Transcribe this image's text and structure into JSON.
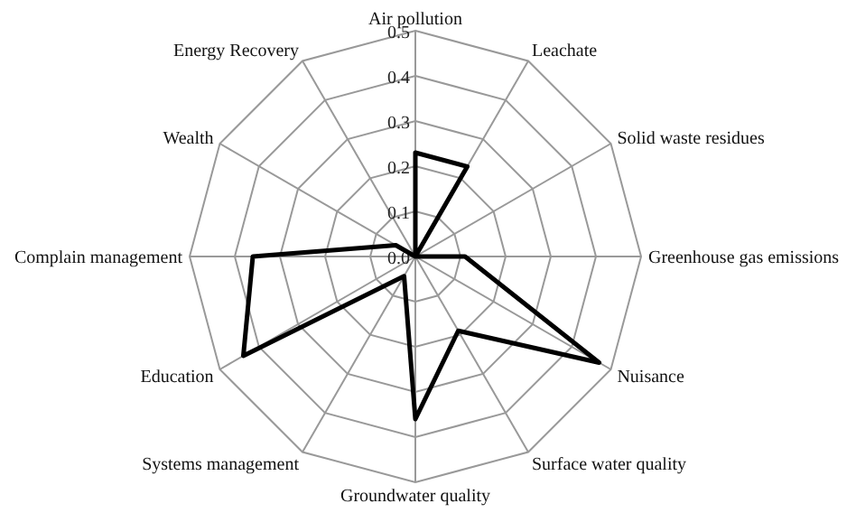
{
  "chart_data": {
    "type": "radar",
    "categories": [
      "Air pollution",
      "Leachate",
      "Solid waste residues",
      "Greenhouse gas emissions",
      "Nuisance",
      "Surface water quality",
      "Groundwater quality",
      "Systems management",
      "Education",
      "Complain management",
      "Wealth",
      "Energy Recovery"
    ],
    "series": [
      {
        "color": "#000000",
        "values": [
          0.23,
          0.23,
          0,
          0.11,
          0.47,
          0.19,
          0.36,
          0.05,
          0.44,
          0.36,
          0.05,
          0
        ]
      }
    ],
    "ylim": [
      0,
      0.5
    ],
    "yticks": [
      {
        "value": 0,
        "label": "0.0"
      },
      {
        "value": 0.1,
        "label": "0.1"
      },
      {
        "value": 0.2,
        "label": "0.2"
      },
      {
        "value": 0.3,
        "label": "0.3"
      },
      {
        "value": 0.4,
        "label": "0.4"
      },
      {
        "value": 0.5,
        "label": "0.5"
      }
    ],
    "grid": true,
    "marker": "none",
    "line_style": "solid"
  }
}
